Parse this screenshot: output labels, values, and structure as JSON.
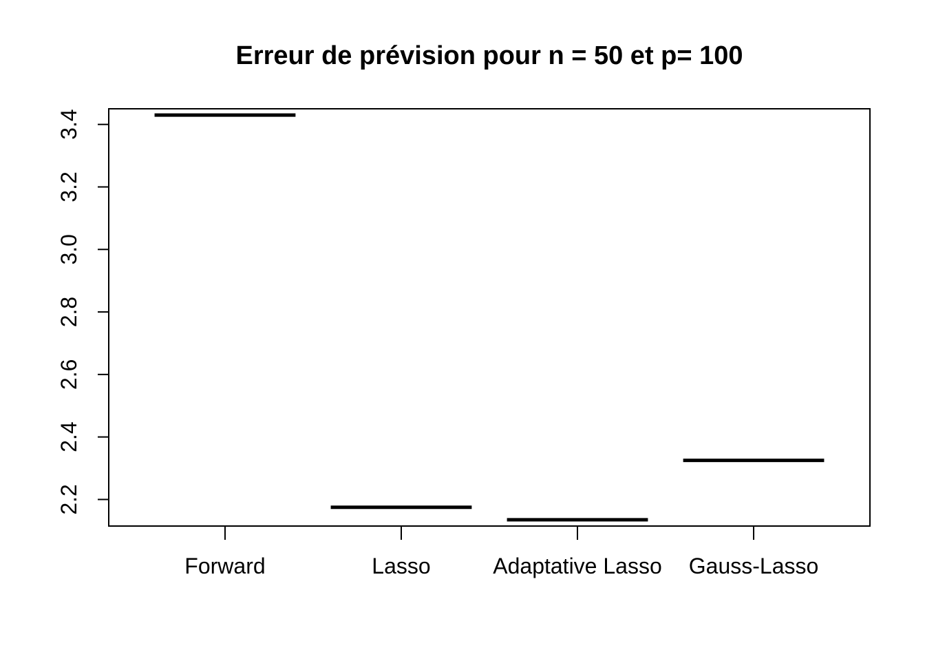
{
  "chart_data": {
    "type": "bar",
    "title": "Erreur de prévision pour n = 50 et p= 100",
    "categories": [
      "Forward",
      "Lasso",
      "Adaptative Lasso",
      "Gauss-Lasso"
    ],
    "values": [
      3.43,
      2.175,
      2.135,
      2.325
    ],
    "xlabel": "",
    "ylabel": "",
    "ylim": [
      2.115,
      3.45
    ],
    "yticks": [
      2.2,
      2.4,
      2.6,
      2.8,
      3.0,
      3.2,
      3.4
    ],
    "ytick_labels": [
      "2.2",
      "2.4",
      "2.6",
      "2.8",
      "3.0",
      "3.2",
      "3.4"
    ],
    "grid": false,
    "legend": null,
    "mark_style": "horizontal-segment",
    "color": "#000000"
  }
}
